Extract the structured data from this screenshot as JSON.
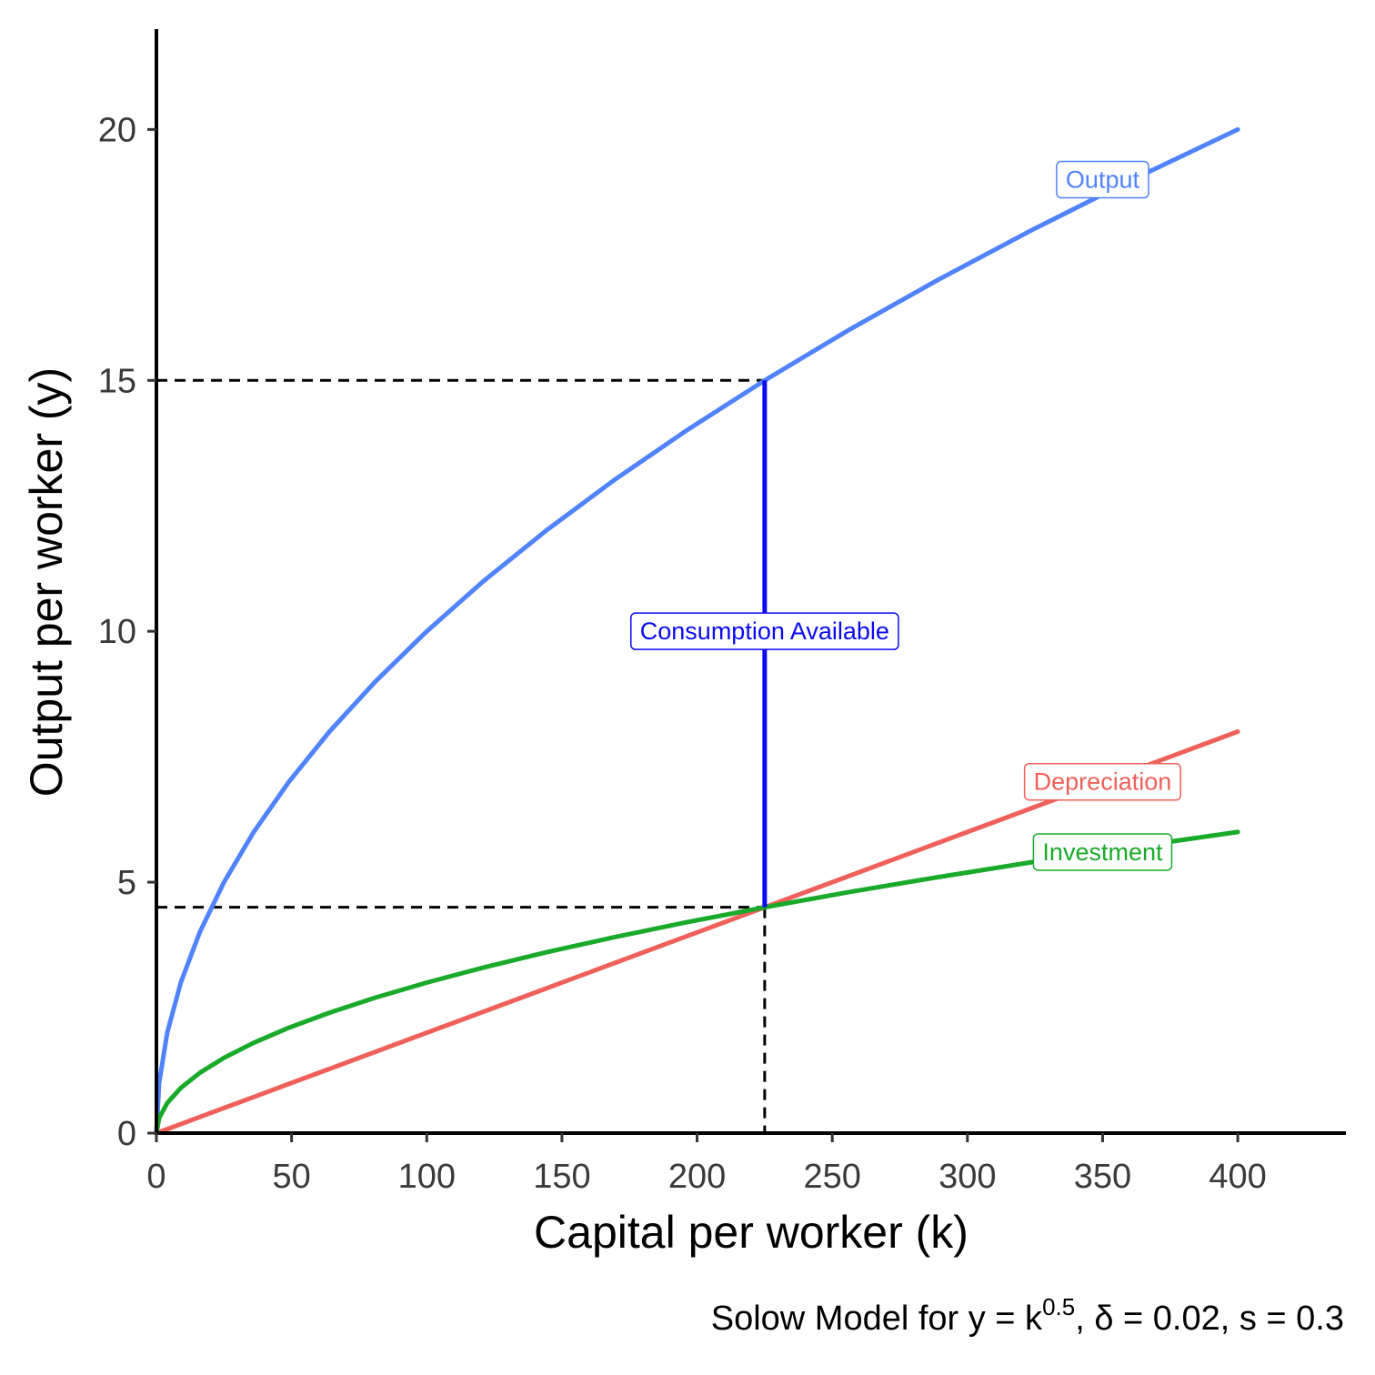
{
  "chart_data": {
    "type": "line",
    "xlabel": "Capital per worker (k)",
    "ylabel": "Output per worker (y)",
    "caption": {
      "prefix": "Solow Model for y = k",
      "exponent": "0.5",
      "suffix": ", δ = 0.02, s = 0.3"
    },
    "xlim": [
      0,
      440
    ],
    "ylim": [
      0,
      22
    ],
    "x_ticks": [
      0,
      50,
      100,
      150,
      200,
      250,
      300,
      350,
      400
    ],
    "y_ticks": [
      0,
      5,
      10,
      15,
      20
    ],
    "x_tick_labels": [
      "0",
      "50",
      "100",
      "150",
      "200",
      "250",
      "300",
      "350",
      "400"
    ],
    "y_tick_labels": [
      "0",
      "5",
      "10",
      "15",
      "20"
    ],
    "grid": false,
    "x": [
      0,
      1,
      4,
      9,
      16,
      25,
      36,
      49,
      64,
      81,
      100,
      121,
      144,
      169,
      196,
      225,
      256,
      289,
      324,
      361,
      400
    ],
    "series": [
      {
        "name": "Output",
        "color": "#5183ff",
        "values": [
          0,
          1,
          2,
          3,
          4,
          5,
          6,
          7,
          8,
          9,
          10,
          11,
          12,
          13,
          14,
          15,
          16,
          17,
          18,
          19,
          20
        ],
        "label_at": [
          350,
          19.0
        ]
      },
      {
        "name": "Depreciation",
        "color": "#f0605a",
        "values": [
          0,
          0.02,
          0.08,
          0.18,
          0.32,
          0.5,
          0.72,
          0.98,
          1.28,
          1.62,
          2.0,
          2.42,
          2.88,
          3.38,
          3.92,
          4.5,
          5.12,
          5.78,
          6.48,
          7.22,
          8.0
        ],
        "label_at": [
          350,
          7.0
        ]
      },
      {
        "name": "Investment",
        "color": "#1aaa2a",
        "values": [
          0,
          0.3,
          0.6,
          0.9,
          1.2,
          1.5,
          1.8,
          2.1,
          2.4,
          2.7,
          3.0,
          3.3,
          3.6,
          3.9,
          4.2,
          4.5,
          4.8,
          5.1,
          5.4,
          5.7,
          6.0
        ],
        "label_at": [
          350,
          5.6
        ]
      }
    ],
    "steady_state": {
      "k": 225,
      "output": 15,
      "investment": 4.5
    },
    "annotations": [
      {
        "text": "Consumption Available",
        "color": "#0a0af5",
        "x": 225,
        "y": 10
      }
    ]
  }
}
